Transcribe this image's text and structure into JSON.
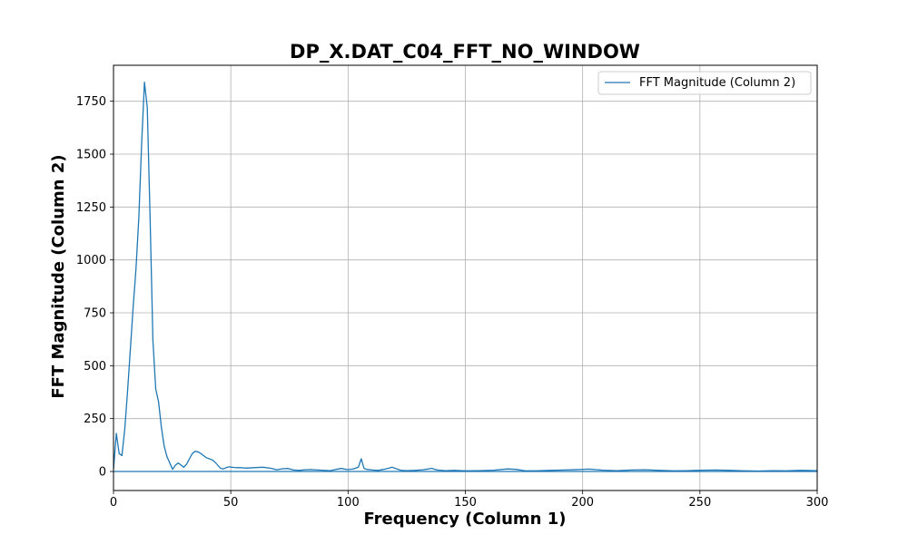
{
  "chart_data": {
    "type": "line",
    "title": "DP_X.DAT_C04_FFT_NO_WINDOW",
    "xlabel": "Frequency (Column 1)",
    "ylabel": "FFT Magnitude (Column 2)",
    "xlim": [
      0,
      300
    ],
    "ylim": [
      -90,
      1920
    ],
    "xticks": [
      0,
      50,
      100,
      150,
      200,
      250,
      300
    ],
    "yticks": [
      0,
      250,
      500,
      750,
      1000,
      1250,
      1500,
      1750
    ],
    "grid": true,
    "legend_position": "top-right",
    "color": "#1f77b4",
    "series": [
      {
        "name": "FFT Magnitude (Column 2)",
        "x": [
          0,
          1.2,
          2.4,
          3.6,
          4.8,
          6.0,
          7.2,
          8.4,
          9.6,
          10.8,
          12.0,
          13.2,
          14.4,
          15.6,
          16.8,
          18.0,
          19.2,
          20.4,
          21.6,
          22.8,
          24.0,
          25.2,
          26.4,
          27.6,
          28.8,
          30.0,
          31.2,
          32.4,
          33.6,
          34.8,
          36.0,
          37.2,
          38.4,
          39.6,
          40.8,
          42.0,
          43.2,
          44.4,
          45.6,
          46.8,
          48.0,
          49.2,
          50.4,
          51.6,
          52.8,
          54.0,
          55.2,
          56.4,
          60.0,
          63.6,
          67.2,
          69.6,
          72.0,
          74.4,
          76.8,
          79.2,
          81.6,
          84.0,
          88.8,
          92.4,
          94.8,
          97.2,
          99.6,
          102.0,
          104.4,
          105.6,
          106.8,
          108.0,
          110.4,
          112.8,
          115.2,
          117.6,
          118.8,
          120.0,
          122.4,
          124.8,
          128.4,
          132.0,
          134.4,
          135.6,
          138.0,
          141.6,
          145.2,
          150.0,
          156.0,
          162.0,
          168.0,
          171.6,
          175.2,
          180.0,
          186.0,
          192.0,
          198.0,
          202.8,
          208.8,
          214.8,
          220.8,
          226.8,
          232.8,
          238.8,
          244.8,
          250.8,
          256.8,
          262.8,
          268.8,
          274.8,
          280.8,
          286.8,
          292.8,
          300.0
        ],
        "values": [
          10,
          180,
          85,
          75,
          200,
          380,
          580,
          780,
          960,
          1200,
          1550,
          1840,
          1720,
          1200,
          620,
          390,
          330,
          210,
          120,
          70,
          40,
          10,
          30,
          40,
          30,
          20,
          35,
          60,
          85,
          95,
          93,
          85,
          75,
          65,
          60,
          55,
          45,
          30,
          15,
          12,
          18,
          22,
          20,
          19,
          18,
          18,
          17,
          16,
          18,
          20,
          15,
          8,
          13,
          14,
          7,
          5,
          8,
          9,
          6,
          4,
          10,
          14,
          9,
          11,
          20,
          60,
          15,
          10,
          7,
          5,
          10,
          16,
          20,
          15,
          6,
          4,
          5,
          8,
          12,
          15,
          7,
          4,
          5,
          3,
          4,
          6,
          12,
          10,
          4,
          3,
          5,
          7,
          9,
          11,
          6,
          4,
          7,
          8,
          5,
          3,
          4,
          6,
          7,
          5,
          3,
          2,
          4,
          3,
          5,
          4
        ],
        "baseline": 0
      }
    ]
  }
}
